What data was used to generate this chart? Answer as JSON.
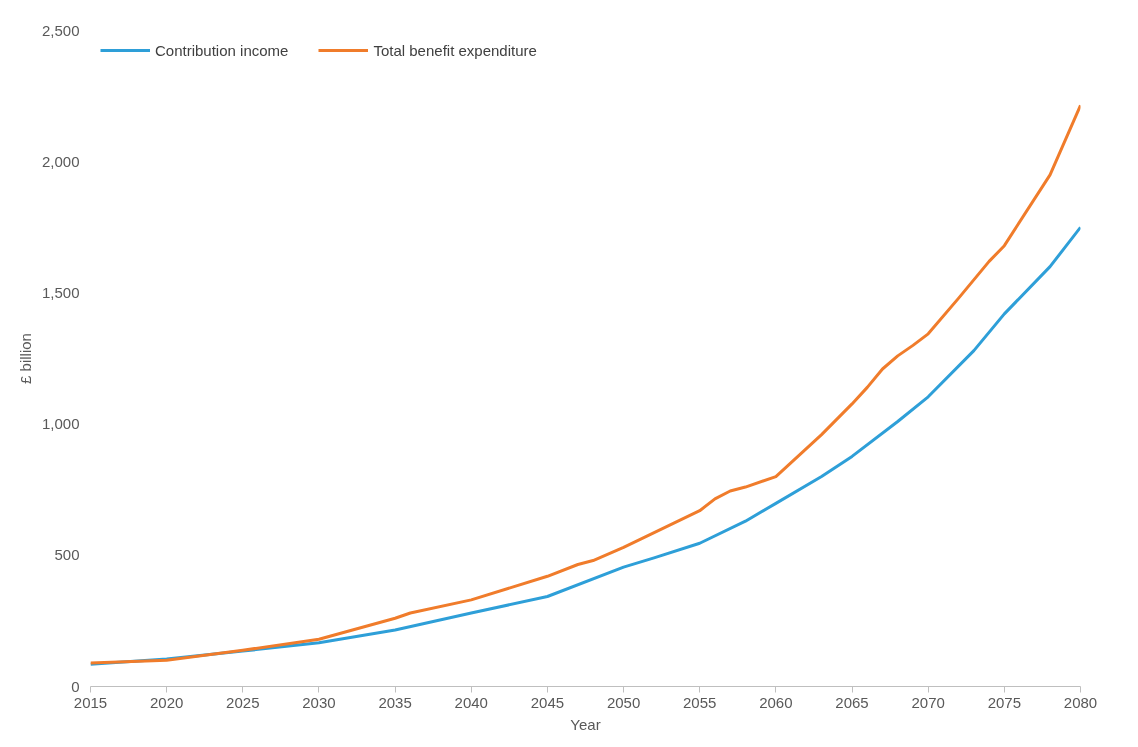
{
  "chart_data": {
    "type": "line",
    "xlabel": "Year",
    "ylabel": "£ billion",
    "xlim": [
      2015,
      2080
    ],
    "xticks": [
      2015,
      2020,
      2025,
      2030,
      2035,
      2040,
      2045,
      2050,
      2055,
      2060,
      2065,
      2070,
      2075,
      2080
    ],
    "ylim": [
      0,
      2500
    ],
    "yticks": [
      {
        "value": 0,
        "label": "0"
      },
      {
        "value": 500,
        "label": "500"
      },
      {
        "value": 1000,
        "label": "1,000"
      },
      {
        "value": 1500,
        "label": "1,500"
      },
      {
        "value": 2000,
        "label": "2,000"
      },
      {
        "value": 2500,
        "label": "2,500"
      }
    ],
    "grid": false,
    "legend": "top left",
    "marker": "none",
    "line_style": "solid",
    "series": [
      {
        "name": "Contribution income",
        "color": "#2e9fd8",
        "x": [
          2015,
          2020,
          2025,
          2030,
          2035,
          2040,
          2045,
          2050,
          2052,
          2055,
          2058,
          2060,
          2063,
          2065,
          2068,
          2070,
          2073,
          2075,
          2078,
          2080
        ],
        "values": [
          85,
          105,
          135,
          167,
          215,
          280,
          343,
          455,
          490,
          546,
          630,
          698,
          800,
          877,
          1010,
          1104,
          1280,
          1420,
          1600,
          1750
        ]
      },
      {
        "name": "Total benefit expenditure",
        "color": "#f07c2b",
        "x": [
          2015,
          2020,
          2025,
          2030,
          2035,
          2036,
          2040,
          2045,
          2047,
          2048,
          2050,
          2055,
          2056,
          2057,
          2058,
          2060,
          2063,
          2065,
          2066,
          2067,
          2068,
          2069,
          2070,
          2072,
          2074,
          2075,
          2078,
          2080
        ],
        "values": [
          90,
          100,
          138,
          180,
          260,
          280,
          330,
          420,
          465,
          480,
          530,
          670,
          715,
          745,
          760,
          800,
          960,
          1077,
          1140,
          1210,
          1260,
          1300,
          1344,
          1480,
          1620,
          1680,
          1950,
          2215
        ]
      }
    ]
  }
}
